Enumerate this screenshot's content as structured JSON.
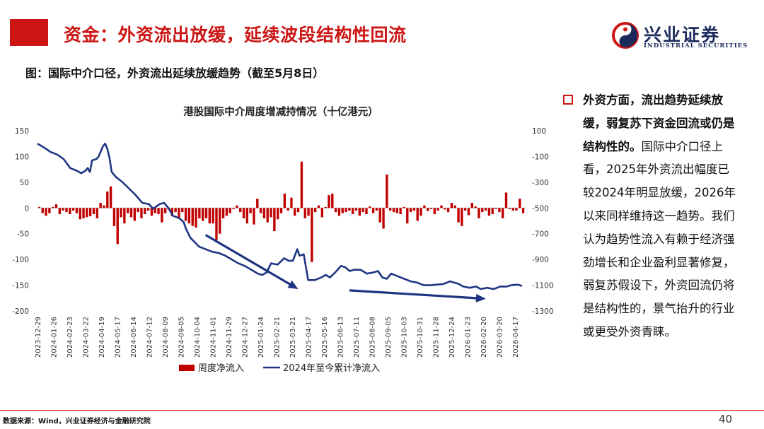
{
  "header": {
    "title": "资金：外资流出放缓，延续波段结构性回流",
    "logo_cn": "兴业证券",
    "logo_en": "INDUSTRIAL SECURITIES"
  },
  "figure_label": "图：国际中介口径，外资流出延续放缓趋势（截至5月8日）",
  "sidebar": {
    "bold_text": "外资方面，流出趋势延续放缓，弱复苏下资金回流或仍是结构性的。",
    "body_text": "国际中介口径上看，2025年外资流出幅度已较2024年明显放缓，2026年以来同样维持这一趋势。我们认为趋势性流入有赖于经济强劲增长和企业盈利显著修复，弱复苏假设下，外资回流仍将是结构性的，景气抬升的行业或更受外资青睐。"
  },
  "footer": {
    "source": "数据来源：Wind，兴业证券经济与金融研究院",
    "page": "40"
  },
  "colors": {
    "brand_red": "#cc1515",
    "bar_red": "#c00000",
    "line_navy": "#1f3582"
  },
  "chart_data": {
    "type": "bar+line",
    "title": "港股国际中介周度增减持情况（十亿港元）",
    "x_tick_labels": [
      "2023-12-29",
      "2024-01-26",
      "2024-02-23",
      "2024-03-22",
      "2024-04-19",
      "2024-05-17",
      "2024-06-14",
      "2024-07-12",
      "2024-08-09",
      "2024-09-05",
      "2024-10-04",
      "2024-11-01",
      "2024-11-29",
      "2024-12-27",
      "2025-01-24",
      "2025-02-21",
      "2025-03-21",
      "2025-04-17",
      "2025-05-16",
      "2025-06-13",
      "2025-07-11",
      "2025-08-08",
      "2025-09-05",
      "2025-10-03",
      "2025-10-31",
      "2025-11-28",
      "2025-12-24",
      "2026-01-23",
      "2026-02-20",
      "2026-03-20",
      "2026-04-17"
    ],
    "y_left": {
      "min": -200,
      "max": 150,
      "ticks": [
        150,
        100,
        50,
        0,
        -50,
        -100,
        -150,
        -200
      ]
    },
    "y_right": {
      "min": -1300,
      "max": 100,
      "ticks": [
        100,
        -100,
        -300,
        -500,
        -700,
        -900,
        -1100,
        -1300
      ]
    },
    "legend": [
      "周度净流入",
      "2024年至今累计净流入"
    ],
    "legend_position": "bottom",
    "series": [
      {
        "name": "周度净流入",
        "type": "bar",
        "axis": "left",
        "values": [
          2,
          -10,
          -15,
          -10,
          2,
          7,
          -12,
          -5,
          -8,
          -12,
          -5,
          -10,
          -22,
          -20,
          -18,
          -16,
          -12,
          -20,
          10,
          5,
          32,
          42,
          -35,
          -70,
          -18,
          -30,
          -10,
          -18,
          -25,
          -8,
          -20,
          -12,
          -5,
          -15,
          -10,
          -12,
          -28,
          -10,
          -3,
          -16,
          -8,
          -20,
          -8,
          -25,
          -30,
          -35,
          -38,
          -20,
          -25,
          -20,
          -30,
          -30,
          -62,
          -50,
          -20,
          -15,
          -10,
          -2,
          5,
          -8,
          -20,
          -30,
          -10,
          -32,
          18,
          -10,
          -20,
          -28,
          -18,
          -45,
          -22,
          -10,
          28,
          -5,
          20,
          -15,
          -8,
          90,
          -20,
          -15,
          -105,
          -8,
          5,
          -18,
          2,
          25,
          28,
          -8,
          -15,
          -10,
          -8,
          -5,
          -12,
          -5,
          -15,
          -8,
          -12,
          3,
          -10,
          -5,
          -28,
          -40,
          65,
          -5,
          -8,
          -10,
          -12,
          2,
          -30,
          -8,
          -5,
          -25,
          -15,
          5,
          -6,
          -2,
          -12,
          -5,
          5,
          -3,
          -8,
          10,
          5,
          -28,
          -35,
          -5,
          -14,
          10,
          3,
          -20,
          -8,
          -5,
          -15,
          -12,
          -2,
          -8,
          -20,
          30,
          -2,
          -5,
          -5,
          18,
          -10
        ]
      },
      {
        "name": "2024年至今累计净流入",
        "type": "line",
        "axis": "right",
        "points": [
          [
            0,
            0
          ],
          [
            6,
            -30
          ],
          [
            12,
            -65
          ],
          [
            18,
            -85
          ],
          [
            24,
            -120
          ],
          [
            30,
            -190
          ],
          [
            36,
            -210
          ],
          [
            40,
            -230
          ],
          [
            44,
            -210
          ],
          [
            46,
            -190
          ],
          [
            48,
            -220
          ],
          [
            50,
            -130
          ],
          [
            54,
            -120
          ],
          [
            56,
            -100
          ],
          [
            58,
            -60
          ],
          [
            60,
            -20
          ],
          [
            62,
            0
          ],
          [
            64,
            -40
          ],
          [
            66,
            -110
          ],
          [
            68,
            -220
          ],
          [
            72,
            -260
          ],
          [
            78,
            -300
          ],
          [
            84,
            -350
          ],
          [
            90,
            -400
          ],
          [
            96,
            -460
          ],
          [
            102,
            -470
          ],
          [
            106,
            -505
          ],
          [
            112,
            -470
          ],
          [
            116,
            -460
          ],
          [
            120,
            -500
          ],
          [
            124,
            -560
          ],
          [
            130,
            -580
          ],
          [
            134,
            -610
          ],
          [
            136,
            -660
          ],
          [
            140,
            -730
          ],
          [
            148,
            -800
          ],
          [
            154,
            -820
          ],
          [
            160,
            -840
          ],
          [
            166,
            -850
          ],
          [
            172,
            -870
          ],
          [
            178,
            -900
          ],
          [
            184,
            -930
          ],
          [
            190,
            -950
          ],
          [
            196,
            -980
          ],
          [
            202,
            -1010
          ],
          [
            206,
            -1020
          ],
          [
            210,
            -1000
          ],
          [
            214,
            -930
          ],
          [
            220,
            -940
          ],
          [
            226,
            -890
          ],
          [
            230,
            -910
          ],
          [
            234,
            -910
          ],
          [
            238,
            -820
          ],
          [
            240,
            -870
          ],
          [
            244,
            -860
          ],
          [
            248,
            -1060
          ],
          [
            254,
            -1060
          ],
          [
            260,
            -1040
          ],
          [
            264,
            -1020
          ],
          [
            268,
            -1040
          ],
          [
            274,
            -990
          ],
          [
            278,
            -950
          ],
          [
            282,
            -960
          ],
          [
            286,
            -990
          ],
          [
            290,
            -980
          ],
          [
            296,
            -980
          ],
          [
            302,
            -1010
          ],
          [
            308,
            -1000
          ],
          [
            312,
            -990
          ],
          [
            316,
            -1040
          ],
          [
            320,
            -1050
          ],
          [
            324,
            -1010
          ],
          [
            330,
            -1030
          ],
          [
            336,
            -1050
          ],
          [
            342,
            -1070
          ],
          [
            348,
            -1080
          ],
          [
            354,
            -1100
          ],
          [
            360,
            -1100
          ],
          [
            366,
            -1095
          ],
          [
            372,
            -1090
          ],
          [
            378,
            -1070
          ],
          [
            382,
            -1080
          ],
          [
            386,
            -1090
          ],
          [
            390,
            -1110
          ],
          [
            396,
            -1120
          ],
          [
            402,
            -1110
          ],
          [
            406,
            -1130
          ],
          [
            412,
            -1120
          ],
          [
            418,
            -1130
          ],
          [
            424,
            -1110
          ],
          [
            430,
            -1110
          ],
          [
            434,
            -1100
          ],
          [
            440,
            -1095
          ],
          [
            444,
            -1105
          ]
        ],
        "x_span": 444
      }
    ],
    "annotations": [
      {
        "type": "arrow",
        "from_index_frac": [
          0.345,
          -710
        ],
        "to_index_frac": [
          0.535,
          -1130
        ],
        "axis": "right"
      },
      {
        "type": "arrow",
        "from_index_frac": [
          0.64,
          -1140
        ],
        "to_index_frac": [
          0.92,
          -1205
        ],
        "axis": "right"
      }
    ]
  }
}
